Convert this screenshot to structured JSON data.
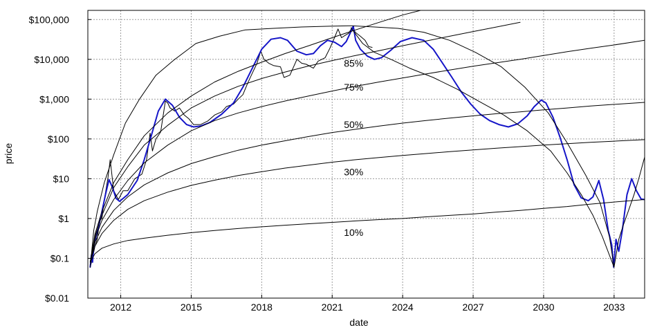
{
  "chart_data": {
    "type": "line",
    "title": "",
    "xlabel": "date",
    "ylabel": "price",
    "xscale": "linear",
    "yscale": "log",
    "xlim": [
      2010.6,
      2034.3
    ],
    "ylim": [
      0.01,
      170000
    ],
    "grid": true,
    "x_ticks": [
      {
        "value": 2012,
        "label": "2012"
      },
      {
        "value": 2015,
        "label": "2015"
      },
      {
        "value": 2018,
        "label": "2018"
      },
      {
        "value": 2021,
        "label": "2021"
      },
      {
        "value": 2024,
        "label": "2024"
      },
      {
        "value": 2027,
        "label": "2027"
      },
      {
        "value": 2030,
        "label": "2030"
      },
      {
        "value": 2033,
        "label": "2033"
      }
    ],
    "y_ticks": [
      {
        "value": 0.01,
        "label": "$0.01"
      },
      {
        "value": 0.1,
        "label": "$0.1"
      },
      {
        "value": 1,
        "label": "$1"
      },
      {
        "value": 10,
        "label": "$10"
      },
      {
        "value": 100,
        "label": "$100"
      },
      {
        "value": 1000,
        "label": "$1,000"
      },
      {
        "value": 10000,
        "label": "$10,000"
      },
      {
        "value": 100000,
        "label": "$100,000"
      }
    ],
    "band_labels": [
      {
        "text": "85%",
        "x": 2021.5,
        "y": 8000
      },
      {
        "text": "75%",
        "x": 2021.5,
        "y": 2000
      },
      {
        "text": "50%",
        "x": 2021.5,
        "y": 230
      },
      {
        "text": "30%",
        "x": 2021.5,
        "y": 15
      },
      {
        "text": "10%",
        "x": 2021.5,
        "y": 0.45
      }
    ],
    "series": [
      {
        "color": "#000000",
        "width": 1,
        "x": [
          2010.7,
          2010.8,
          2010.9,
          2011.0,
          2011.1,
          2011.2,
          2011.3,
          2011.45,
          2011.55,
          2011.7,
          2011.9,
          2012.1,
          2012.3,
          2012.6,
          2012.9,
          2013.1,
          2013.25,
          2013.35,
          2013.5,
          2013.7,
          2013.9,
          2014.0,
          2014.1,
          2014.3,
          2014.5,
          2014.7,
          2014.9,
          2015.1,
          2015.4,
          2015.7,
          2016.0,
          2016.3,
          2016.5,
          2016.8,
          2017.0,
          2017.2,
          2017.4,
          2017.6,
          2017.8,
          2017.96,
          2018.1,
          2018.3,
          2018.5,
          2018.8,
          2018.95,
          2019.2,
          2019.5,
          2019.7,
          2019.9,
          2020.2,
          2020.4,
          2020.7,
          2020.9,
          2021.1,
          2021.25,
          2021.4,
          2021.55,
          2021.7,
          2021.85,
          2022.0,
          2022.2,
          2022.4,
          2022.55,
          2022.7
        ],
        "y": [
          0.06,
          0.1,
          0.2,
          0.3,
          0.9,
          1.0,
          3.0,
          10,
          30,
          5,
          3,
          5,
          5,
          10,
          13,
          30,
          140,
          50,
          100,
          150,
          900,
          800,
          600,
          500,
          600,
          400,
          320,
          230,
          230,
          280,
          400,
          480,
          650,
          750,
          1000,
          1300,
          2500,
          4500,
          8000,
          16000,
          10000,
          8000,
          7000,
          6500,
          3500,
          4000,
          10000,
          8000,
          7500,
          6000,
          9000,
          11000,
          19000,
          35000,
          58000,
          35000,
          40000,
          45000,
          63000,
          47000,
          38000,
          30000,
          21000,
          20000
        ]
      },
      {
        "color": "#1515c8",
        "width": 2,
        "x": [
          2010.7,
          2010.75,
          2010.8,
          2010.85,
          2010.92,
          2011.05,
          2011.2,
          2011.35,
          2011.5,
          2011.65,
          2011.8,
          2011.95,
          2012.3,
          2012.7,
          2013.0,
          2013.3,
          2013.6,
          2013.9,
          2014.2,
          2014.5,
          2014.8,
          2015.1,
          2015.4,
          2015.8,
          2016.3,
          2016.8,
          2017.2,
          2017.6,
          2018.0,
          2018.4,
          2018.8,
          2019.1,
          2019.5,
          2019.9,
          2020.2,
          2020.5,
          2020.8,
          2021.1,
          2021.4,
          2021.6,
          2021.8,
          2021.9,
          2022.0,
          2022.2,
          2022.5,
          2022.8,
          2023.1,
          2023.5,
          2023.9,
          2024.4,
          2024.9,
          2025.3,
          2025.7,
          2026.1,
          2026.5,
          2026.9,
          2027.3,
          2027.7,
          2028.1,
          2028.5,
          2028.9,
          2029.3,
          2029.6,
          2029.9,
          2030.1,
          2030.4,
          2030.7,
          2031.0,
          2031.3,
          2031.6,
          2031.9,
          2032.1,
          2032.35,
          2032.55,
          2032.75,
          2032.9,
          2032.98,
          2033.08,
          2033.2,
          2033.35,
          2033.55,
          2033.75,
          2033.95,
          2034.15,
          2034.3
        ],
        "y": [
          0.06,
          0.12,
          0.08,
          0.2,
          0.3,
          0.6,
          1.5,
          4,
          9.5,
          6,
          3.2,
          2.7,
          4,
          9,
          30,
          120,
          500,
          1000,
          700,
          350,
          230,
          200,
          210,
          260,
          420,
          800,
          2000,
          6000,
          18000,
          32000,
          35000,
          30000,
          16000,
          13000,
          14000,
          22000,
          30000,
          27000,
          21000,
          28000,
          50000,
          68000,
          30000,
          18000,
          12000,
          10000,
          11000,
          17000,
          28000,
          35000,
          30000,
          18000,
          8000,
          3500,
          1500,
          750,
          420,
          290,
          230,
          200,
          240,
          380,
          650,
          950,
          800,
          350,
          110,
          30,
          7,
          3.3,
          2.8,
          3.5,
          9,
          3,
          0.5,
          0.22,
          0.06,
          0.3,
          0.15,
          0.5,
          4,
          10,
          5,
          3.1,
          3.0
        ]
      },
      {
        "color": "#000000",
        "width": 1,
        "x": [
          2010.7,
          2010.85,
          2011.0,
          2011.3,
          2011.7,
          2012.2,
          2012.8,
          2013.5,
          2014.3,
          2015.2,
          2016.2,
          2017.3,
          2018.5,
          2019.7,
          2020.9,
          2021.8,
          2022.8,
          2023.8,
          2024.9,
          2026.0,
          2027.1,
          2028.2,
          2029.2,
          2030.2,
          2031.0,
          2031.8,
          2032.4,
          2032.8,
          2033.0
        ],
        "y": [
          0.06,
          0.5,
          1.5,
          8,
          40,
          250,
          1000,
          4000,
          10000,
          25000,
          38000,
          55000,
          60000,
          65000,
          68000,
          70000,
          65000,
          60000,
          48000,
          30000,
          15000,
          6500,
          2000,
          450,
          80,
          12,
          2.5,
          0.35,
          0.06
        ]
      },
      {
        "color": "#000000",
        "width": 1,
        "x": [
          2021.8,
          2022.3,
          2022.8,
          2023.5,
          2024.3,
          2025.3,
          2026.3,
          2027.3,
          2028.3,
          2029.3,
          2030.3,
          2031.0,
          2031.6,
          2032.1,
          2032.5,
          2032.8,
          2033.0
        ],
        "y": [
          62000,
          25000,
          15000,
          10000,
          6000,
          3500,
          1800,
          850,
          400,
          160,
          50,
          14,
          4,
          1.2,
          0.35,
          0.12,
          0.06
        ]
      },
      {
        "color": "#000000",
        "width": 1,
        "x": [
          2033.0,
          2033.2,
          2033.4,
          2033.6,
          2033.85,
          2034.05,
          2034.3
        ],
        "y": [
          0.06,
          0.3,
          0.7,
          1.5,
          4,
          10,
          35
        ]
      },
      {
        "color": "#000000",
        "width": 1,
        "x": [
          2010.7,
          2010.9,
          2011.2,
          2011.7,
          2012.3,
          2013.0,
          2014.0,
          2015.0,
          2016.0,
          2017.0,
          2018.0,
          2019.0,
          2020.0,
          2021.0,
          2022.0,
          2023.0,
          2024.0,
          2025.5
        ],
        "y": [
          0.08,
          0.4,
          1.5,
          8,
          30,
          120,
          450,
          1200,
          2700,
          5000,
          8500,
          14000,
          22000,
          35000,
          55000,
          85000,
          130000,
          220000
        ]
      },
      {
        "color": "#000000",
        "width": 1,
        "x": [
          2010.7,
          2010.9,
          2011.2,
          2011.7,
          2012.3,
          2013.0,
          2014.0,
          2015.0,
          2016.0,
          2017.0,
          2018.0,
          2019.0,
          2020.0,
          2021.0,
          2022.0,
          2023.0,
          2024.0,
          2025.0,
          2026.0,
          2027.0,
          2028.0,
          2029.0
        ],
        "y": [
          0.08,
          0.35,
          1.2,
          6,
          20,
          70,
          220,
          600,
          1200,
          2100,
          3300,
          4800,
          6800,
          9300,
          12500,
          16500,
          22000,
          29000,
          38000,
          50000,
          65000,
          85000
        ]
      },
      {
        "color": "#000000",
        "width": 1,
        "x": [
          2010.7,
          2010.9,
          2011.2,
          2011.7,
          2012.3,
          2013.0,
          2014.0,
          2015.0,
          2016.0,
          2017.0,
          2018.0,
          2019.0,
          2020.0,
          2021.0,
          2022.0,
          2023.0,
          2024.0,
          2025.0,
          2026.0,
          2027.0,
          2028.0,
          2029.0,
          2030.0,
          2031.0,
          2032.0,
          2033.0,
          2034.3
        ],
        "y": [
          0.08,
          0.3,
          0.9,
          3,
          9,
          25,
          70,
          160,
          290,
          450,
          650,
          900,
          1200,
          1600,
          2100,
          2700,
          3400,
          4300,
          5400,
          6700,
          8200,
          10000,
          12500,
          15500,
          19000,
          23000,
          30000
        ]
      },
      {
        "color": "#000000",
        "width": 1,
        "x": [
          2010.7,
          2010.9,
          2011.2,
          2011.7,
          2012.3,
          2013.0,
          2014.0,
          2015.0,
          2016.0,
          2017.0,
          2018.0,
          2019.0,
          2020.0,
          2021.0,
          2022.0,
          2023.0,
          2024.0,
          2025.0,
          2026.0,
          2027.0,
          2028.0,
          2029.0,
          2030.0,
          2031.0,
          2032.0,
          2033.0,
          2034.3
        ],
        "y": [
          0.08,
          0.25,
          0.6,
          1.6,
          3.5,
          7,
          14,
          24,
          36,
          52,
          70,
          90,
          115,
          145,
          175,
          210,
          250,
          290,
          335,
          380,
          430,
          480,
          540,
          600,
          670,
          740,
          830
        ]
      },
      {
        "color": "#000000",
        "width": 1,
        "x": [
          2010.7,
          2010.9,
          2011.2,
          2011.7,
          2012.3,
          2013.0,
          2014.0,
          2015.0,
          2016.0,
          2017.0,
          2018.0,
          2019.0,
          2020.0,
          2021.0,
          2022.0,
          2023.0,
          2024.0,
          2025.0,
          2026.0,
          2027.0,
          2028.0,
          2029.0,
          2030.0,
          2031.0,
          2032.0,
          2033.0,
          2034.3
        ],
        "y": [
          0.08,
          0.2,
          0.42,
          0.9,
          1.7,
          2.8,
          4.6,
          6.8,
          9.2,
          12,
          15,
          18.5,
          22,
          26,
          30,
          34,
          38.5,
          43,
          48,
          53,
          58.5,
          64,
          70,
          76,
          82,
          88,
          96
        ]
      },
      {
        "color": "#000000",
        "width": 1,
        "x": [
          2010.7,
          2010.9,
          2011.2,
          2011.7,
          2012.3,
          2013.0,
          2014.0,
          2015.0,
          2016.0,
          2017.0,
          2018.0,
          2019.0,
          2020.0,
          2021.0,
          2022.0,
          2023.0,
          2024.0,
          2025.0,
          2026.0,
          2027.0,
          2028.0,
          2029.0,
          2030.0,
          2031.0,
          2032.0,
          2033.0,
          2034.3
        ],
        "y": [
          0.08,
          0.13,
          0.18,
          0.23,
          0.28,
          0.32,
          0.38,
          0.44,
          0.5,
          0.56,
          0.62,
          0.68,
          0.74,
          0.8,
          0.87,
          0.94,
          1.0,
          1.1,
          1.2,
          1.3,
          1.45,
          1.6,
          1.8,
          2.0,
          2.3,
          2.6,
          3.0
        ]
      }
    ]
  }
}
